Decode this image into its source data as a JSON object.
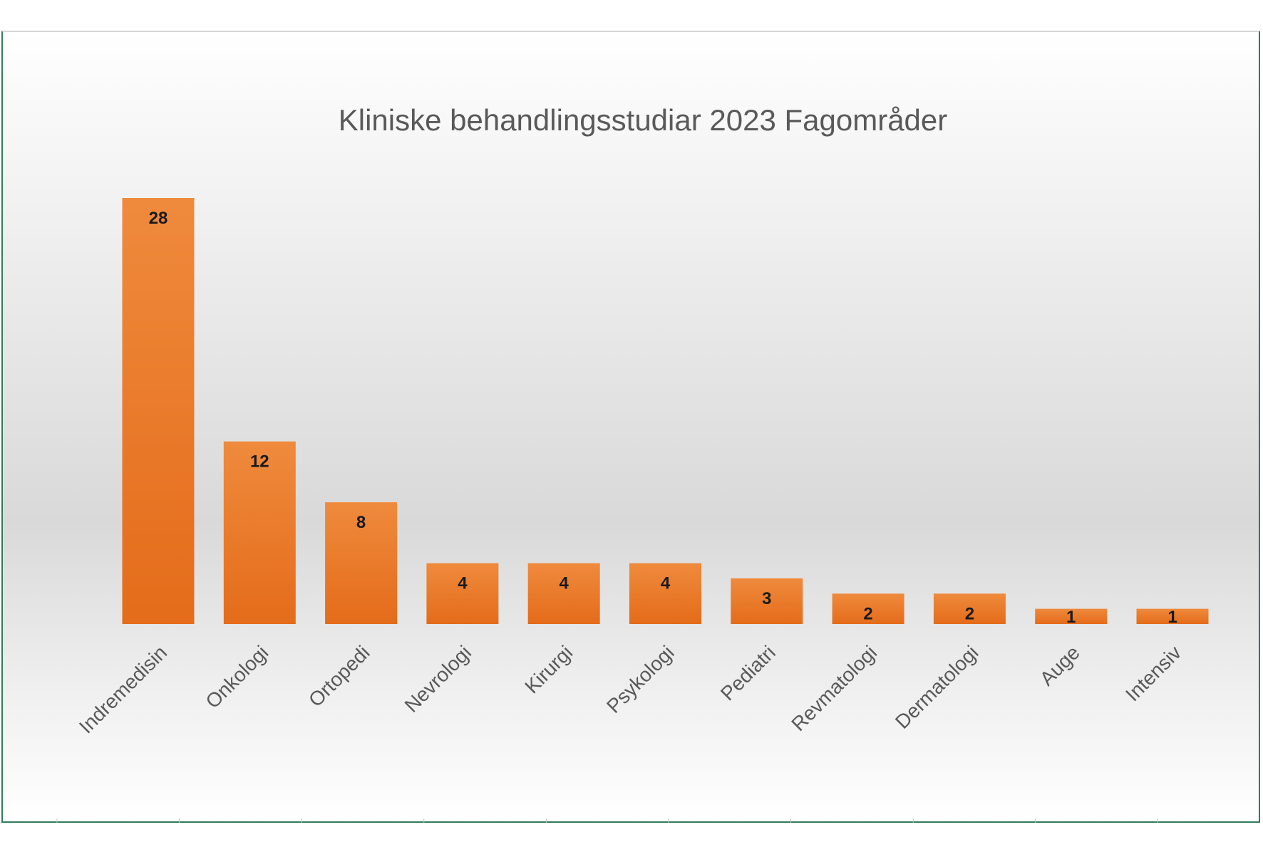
{
  "chart_data": {
    "type": "bar",
    "title": "Kliniske behandlingsstudiar 2023 Fagområder",
    "categories": [
      "Indremedisin",
      "Onkologi",
      "Ortopedi",
      "Nevrologi",
      "Kirurgi",
      "Psykologi",
      "Pediatri",
      "Revmatologi",
      "Dermatologi",
      "Auge",
      "Intensiv"
    ],
    "values": [
      28,
      12,
      8,
      4,
      4,
      4,
      3,
      2,
      2,
      1,
      1
    ],
    "xlabel": "",
    "ylabel": "",
    "ylim": [
      0,
      30
    ],
    "grid": false,
    "legend": "none",
    "bar_color": "#e46c1a",
    "bar_color_light": "#ef8a3d",
    "data_labels": true
  }
}
